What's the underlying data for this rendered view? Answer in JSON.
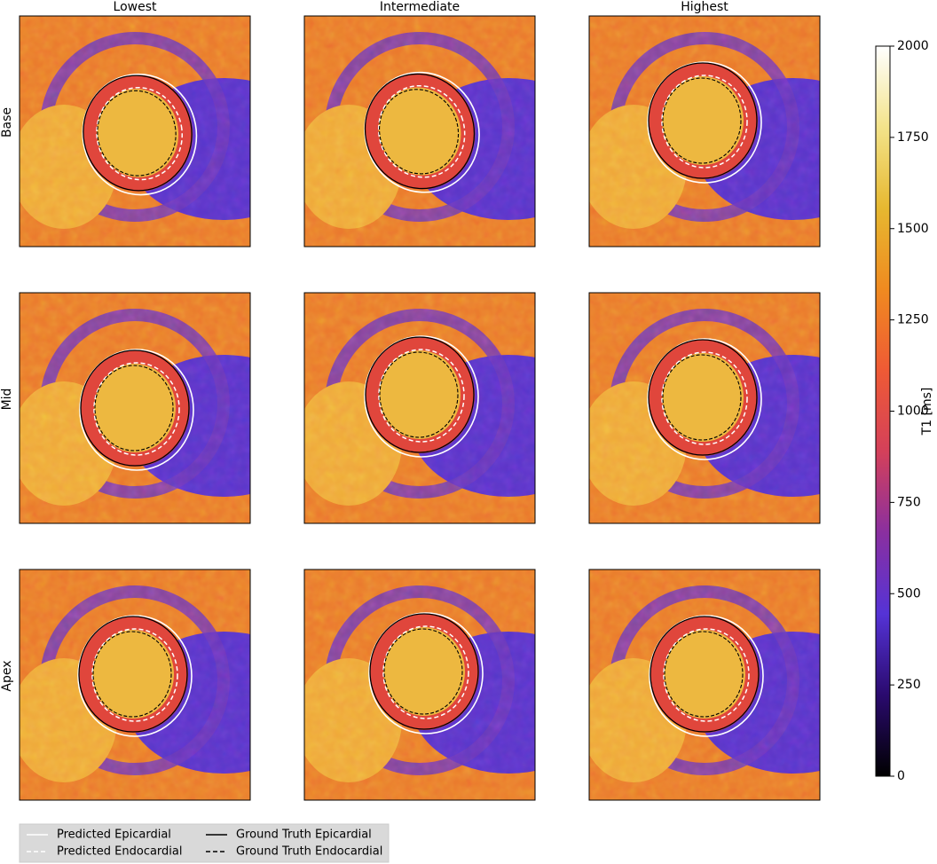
{
  "columns": [
    "Lowest",
    "Intermediate",
    "Highest"
  ],
  "rows": [
    "Base",
    "Mid",
    "Apex"
  ],
  "colorbar": {
    "label": "T1 [ms]",
    "lim": [
      0,
      2000
    ],
    "ticks": [
      0,
      250,
      500,
      750,
      1000,
      1250,
      1500,
      1750,
      2000
    ],
    "colormap": [
      "#000000",
      "#2a0a6e",
      "#5533d6",
      "#8a2fa0",
      "#d4405a",
      "#ef5a35",
      "#f08a20",
      "#e6b830",
      "#f3e38a",
      "#ffffff"
    ]
  },
  "legend": [
    {
      "label": "Predicted Epicardial",
      "color": "#ffffff",
      "dashed": false
    },
    {
      "label": "Predicted Endocardial",
      "color": "#ffffff",
      "dashed": true
    },
    {
      "label": "Ground Truth Epicardial",
      "color": "#000000",
      "dashed": false
    },
    {
      "label": "Ground Truth Endocardial",
      "color": "#000000",
      "dashed": true
    }
  ]
}
